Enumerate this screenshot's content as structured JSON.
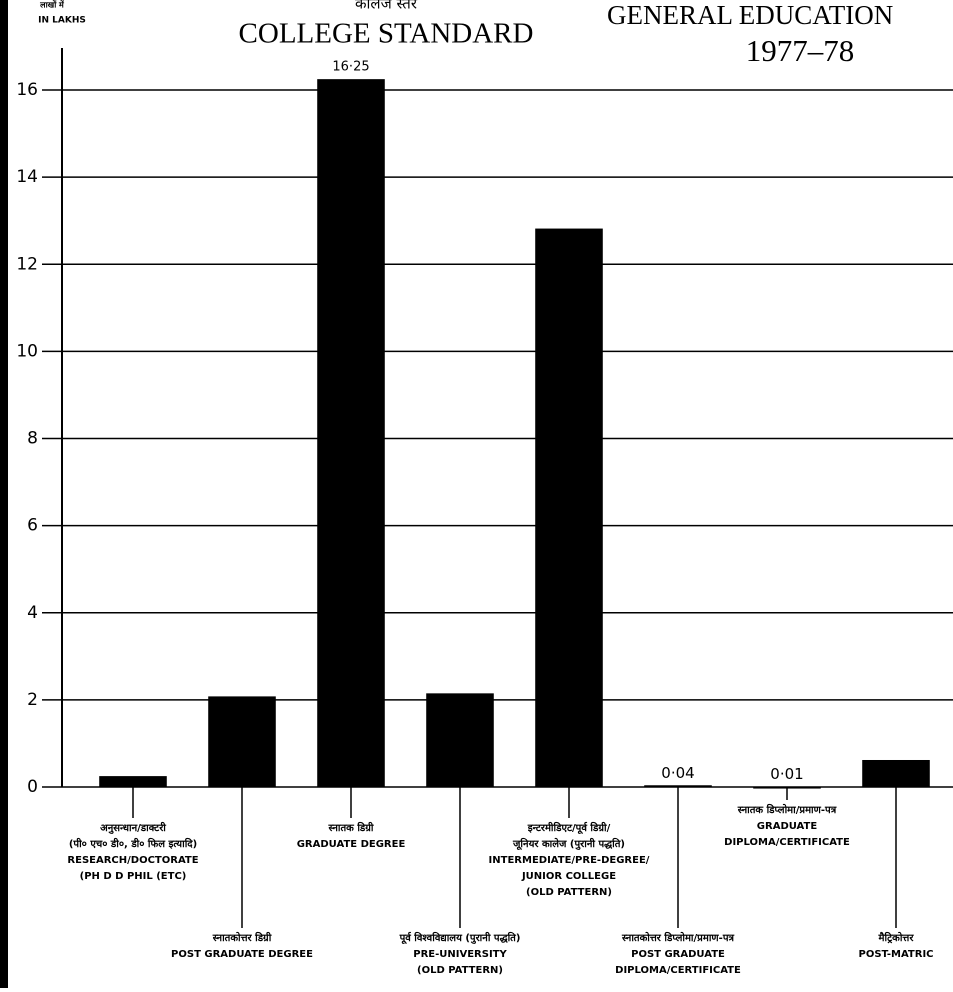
{
  "chart_data": {
    "type": "bar",
    "title": "COLLEGE STANDARD",
    "subtitle": "कालेज स्तर",
    "heading": "GENERAL EDUCATION",
    "year": "1977–78",
    "y_label": [
      "लाखों में",
      "IN LAKHS"
    ],
    "categories": [
      [
        "अनुसन्धान/डाक्टरी",
        "(पी० एच० डी०, डी० फिल इत्यादि)",
        "RESEARCH/DOCTORATE",
        "(PH D  D PHIL (ETC)"
      ],
      [
        "स्नातकोत्तर डिग्री",
        "POST GRADUATE DEGREE"
      ],
      [
        "स्नातक डिग्री",
        "GRADUATE DEGREE"
      ],
      [
        "पूर्व विश्वविद्यालय (पुरानी पद्धति)",
        "PRE-UNIVERSITY",
        "(OLD PATTERN)"
      ],
      [
        "इन्टरमीडिएट/पूर्व डिग्री/",
        "जूनियर कालेज (पुरानी पद्धति)",
        "INTERMEDIATE/PRE-DEGREE/",
        "JUNIOR COLLEGE",
        "(OLD PATTERN)"
      ],
      [
        "स्नातकोत्तर डिप्लोमा/प्रमाण-पत्र",
        "POST GRADUATE",
        "DIPLOMA/CERTIFICATE"
      ],
      [
        "स्नातक डिप्लोमा/प्रमाण-पत्र",
        "GRADUATE",
        "DIPLOMA/CERTIFICATE"
      ],
      [
        "मैट्रिकोत्तर",
        "POST-MATRIC"
      ]
    ],
    "values": [
      0.25,
      2.08,
      16.25,
      2.15,
      12.82,
      0.04,
      0.01,
      0.62
    ],
    "value_labels": [
      null,
      null,
      "16·25",
      null,
      null,
      "0·04",
      "0·01",
      null
    ],
    "color": "#000000",
    "ylim": [
      0,
      17
    ],
    "yticks": [
      0,
      2,
      4,
      6,
      8,
      10,
      12,
      14,
      16
    ],
    "grid": true
  }
}
